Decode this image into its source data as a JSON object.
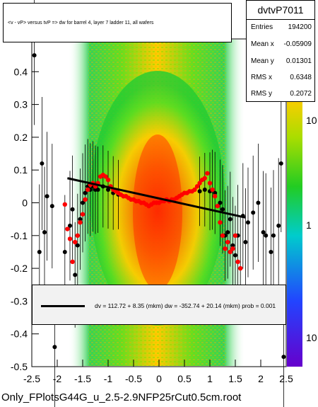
{
  "title": "<v - vP>       versus  tvP =>  dw for barrel 4, layer 7 ladder 11, all wafers",
  "stats": {
    "name": "dvtvP7011",
    "rows": [
      {
        "label": "Entries",
        "value": "194200"
      },
      {
        "label": "Mean x",
        "value": "-0.05909"
      },
      {
        "label": "Mean y",
        "value": "0.01301"
      },
      {
        "label": "RMS x",
        "value": "0.6348"
      },
      {
        "label": "RMS y",
        "value": "0.2072"
      }
    ]
  },
  "fit_text": "dv =  112.72 +  8.35 (mkm) dw = -352.74 + 20.14 (mkm) prob = 0.001",
  "footer": "Only_FPlotsG44G_u_2.5-2.9NFP25rCut0.5cm.root",
  "colors": {
    "band_center": "#ff3300",
    "band_edge": "#22cc22",
    "profile_red": "#ff0000",
    "profile_black": "#000000",
    "fit_line": "#000000"
  },
  "chart_data": {
    "type": "heatmap",
    "xlim": [
      -2.5,
      2.5
    ],
    "ylim": [
      -0.5,
      0.5
    ],
    "x_ticks": [
      "-2.5",
      "-2",
      "-1.5",
      "-1",
      "-0.5",
      "0",
      "0.5",
      "1",
      "1.5",
      "2",
      "2.5"
    ],
    "y_ticks": [
      "-0.5",
      "-0.4",
      "-0.3",
      "-0.2",
      "-0.1",
      "0",
      "0.1",
      "0.2",
      "0.3",
      "0.4"
    ],
    "z_ticks": [
      "10",
      "1",
      "10"
    ],
    "z_scale": "log",
    "series": [
      {
        "values": [
          [
            -1.85,
            -0.005
          ],
          [
            -1.8,
            -0.08
          ],
          [
            -1.75,
            -0.11
          ],
          [
            -1.7,
            -0.18
          ],
          [
            -1.65,
            -0.12
          ],
          [
            -1.6,
            -0.1
          ],
          [
            -1.55,
            -0.06
          ],
          [
            -1.5,
            -0.035
          ],
          [
            -1.45,
            0.01
          ],
          [
            -1.4,
            0.04
          ],
          [
            -1.35,
            0.055
          ],
          [
            -1.3,
            0.06
          ],
          [
            -1.25,
            0.05
          ],
          [
            -1.2,
            0.06
          ],
          [
            -1.15,
            0.08
          ],
          [
            -1.1,
            0.085
          ],
          [
            -1.05,
            0.08
          ],
          [
            -1.0,
            0.07
          ],
          [
            -0.95,
            0.05
          ],
          [
            -0.9,
            0.04
          ],
          [
            -0.85,
            0.035
          ],
          [
            -0.8,
            0.03
          ],
          [
            -0.75,
            0.025
          ],
          [
            -0.7,
            0.02
          ],
          [
            -0.65,
            0.02
          ],
          [
            -0.6,
            0.015
          ],
          [
            -0.55,
            0.01
          ],
          [
            -0.5,
            0.01
          ],
          [
            -0.45,
            0.005
          ],
          [
            -0.4,
            0.005
          ],
          [
            -0.35,
            0.0
          ],
          [
            -0.3,
            0.0
          ],
          [
            -0.25,
            -0.005
          ],
          [
            -0.2,
            -0.01
          ],
          [
            -0.15,
            -0.005
          ],
          [
            -0.1,
            0.0
          ],
          [
            -0.05,
            0.0
          ],
          [
            0.0,
            0.0
          ],
          [
            0.05,
            0.005
          ],
          [
            0.1,
            0.005
          ],
          [
            0.15,
            0.01
          ],
          [
            0.2,
            0.005
          ],
          [
            0.25,
            0.01
          ],
          [
            0.3,
            0.01
          ],
          [
            0.35,
            0.015
          ],
          [
            0.4,
            0.02
          ],
          [
            0.45,
            0.025
          ],
          [
            0.5,
            0.03
          ],
          [
            0.55,
            0.03
          ],
          [
            0.6,
            0.035
          ],
          [
            0.65,
            0.035
          ],
          [
            0.7,
            0.04
          ],
          [
            0.75,
            0.05
          ],
          [
            0.8,
            0.06
          ],
          [
            0.85,
            0.07
          ],
          [
            0.9,
            0.075
          ],
          [
            0.95,
            0.09
          ],
          [
            1.0,
            0.06
          ],
          [
            1.05,
            0.04
          ],
          [
            1.1,
            0.02
          ],
          [
            1.15,
            -0.01
          ],
          [
            1.2,
            -0.06
          ],
          [
            1.25,
            -0.1
          ],
          [
            1.3,
            -0.14
          ],
          [
            1.35,
            -0.12
          ],
          [
            1.4,
            -0.15
          ],
          [
            1.45,
            -0.14
          ],
          [
            1.5,
            -0.1
          ],
          [
            1.55,
            -0.18
          ],
          [
            1.6,
            -0.2
          ]
        ]
      },
      {
        "values": [
          [
            -2.45,
            0.45
          ],
          [
            -2.35,
            -0.15
          ],
          [
            -2.3,
            0.12
          ],
          [
            -2.25,
            -0.09
          ],
          [
            -2.2,
            0.02
          ],
          [
            -2.1,
            -0.01
          ],
          [
            -2.05,
            -0.44
          ],
          [
            -1.85,
            -0.15
          ],
          [
            -1.75,
            -0.07
          ],
          [
            -1.7,
            -0.02
          ],
          [
            -1.65,
            -0.22
          ],
          [
            -1.6,
            -0.13
          ],
          [
            -1.55,
            -0.05
          ],
          [
            -1.5,
            0.0
          ],
          [
            -1.45,
            0.03
          ],
          [
            -1.4,
            0.05
          ],
          [
            -1.35,
            0.04
          ],
          [
            -1.3,
            0.05
          ],
          [
            -1.25,
            0.04
          ],
          [
            -1.2,
            0.04
          ],
          [
            -1.1,
            0.05
          ],
          [
            -1.0,
            0.04
          ],
          [
            -0.9,
            0.03
          ],
          [
            -0.8,
            0.025
          ],
          [
            0.8,
            0.035
          ],
          [
            0.9,
            0.04
          ],
          [
            1.0,
            0.035
          ],
          [
            1.05,
            0.04
          ],
          [
            1.1,
            0.03
          ],
          [
            1.2,
            0.0
          ],
          [
            1.25,
            -0.02
          ],
          [
            1.3,
            -0.1
          ],
          [
            1.35,
            -0.09
          ],
          [
            1.4,
            -0.05
          ],
          [
            1.45,
            -0.13
          ],
          [
            1.5,
            -0.16
          ],
          [
            1.55,
            -0.1
          ],
          [
            1.6,
            -0.2
          ],
          [
            1.65,
            -0.04
          ],
          [
            1.7,
            -0.12
          ],
          [
            1.75,
            -0.06
          ],
          [
            1.85,
            -0.03
          ],
          [
            1.95,
            0.0
          ],
          [
            2.05,
            -0.09
          ],
          [
            2.1,
            -0.1
          ],
          [
            2.2,
            -0.15
          ],
          [
            2.25,
            -0.1
          ],
          [
            2.35,
            -0.07
          ],
          [
            2.4,
            0.12
          ],
          [
            2.45,
            -0.47
          ]
        ]
      }
    ],
    "fit": {
      "x": [
        -1.8,
        1.7
      ],
      "y": [
        0.075,
        -0.045
      ]
    }
  }
}
